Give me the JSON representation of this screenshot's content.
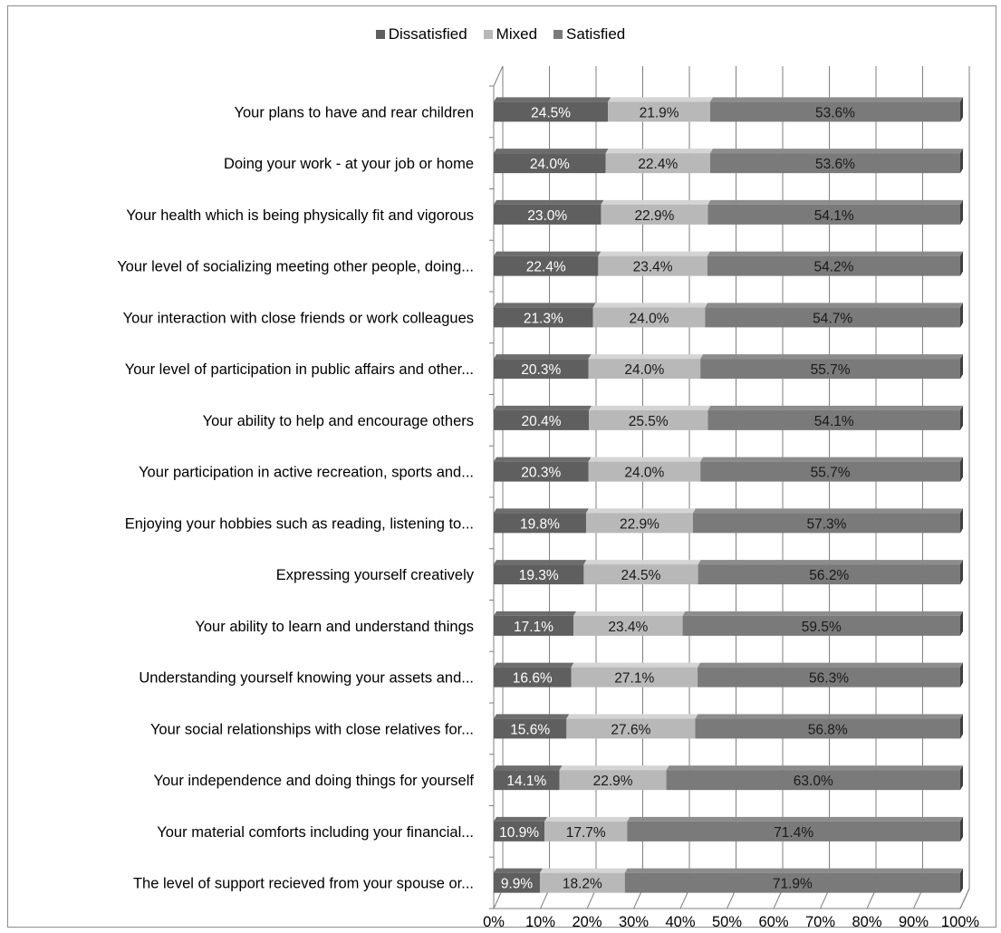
{
  "chart_data": {
    "type": "bar",
    "orientation": "horizontal",
    "stacked": "percent",
    "style": "3d",
    "legend_position": "top",
    "grid": true,
    "xlim": [
      0,
      100
    ],
    "x_ticks": [
      "0%",
      "10%",
      "20%",
      "30%",
      "40%",
      "50%",
      "60%",
      "70%",
      "80%",
      "90%",
      "100%"
    ],
    "categories": [
      "Your plans to have and rear children",
      "Doing your work - at your job or home",
      "Your health which is being physically fit and vigorous",
      "Your level of socializing meeting other people, doing...",
      "Your interaction with close friends or work colleagues",
      "Your level of participation in public affairs and other...",
      "Your ability to help and encourage others",
      "Your participation in active recreation, sports and...",
      "Enjoying your hobbies such as reading, listening to...",
      "Expressing yourself creatively",
      "Your ability to learn  and understand things",
      "Understanding yourself knowing your assets and...",
      "Your social relationships with close relatives for...",
      "Your independence and doing things for yourself",
      "Your material comforts including your financial...",
      "The level of support recieved from your spouse or..."
    ],
    "series": [
      {
        "name": "Dissatisfied",
        "color": "#5f5f5f",
        "values": [
          24.5,
          24.0,
          23.0,
          22.4,
          21.3,
          20.3,
          20.4,
          20.3,
          19.8,
          19.3,
          17.1,
          16.6,
          15.6,
          14.1,
          10.9,
          9.9
        ],
        "labels": [
          "24.5%",
          "24.0%",
          "23.0%",
          "22.4%",
          "21.3%",
          "20.3%",
          "20.4%",
          "20.3%",
          "19.8%",
          "19.3%",
          "17.1%",
          "16.6%",
          "15.6%",
          "14.1%",
          "10.9%",
          "9.9%"
        ]
      },
      {
        "name": "Mixed",
        "color": "#b8b8b8",
        "values": [
          21.9,
          22.4,
          22.9,
          23.4,
          24.0,
          24.0,
          25.5,
          24.0,
          22.9,
          24.5,
          23.4,
          27.1,
          27.6,
          22.9,
          17.7,
          18.2
        ],
        "labels": [
          "21.9%",
          "22.4%",
          "22.9%",
          "23.4%",
          "24.0%",
          "24.0%",
          "25.5%",
          "24.0%",
          "22.9%",
          "24.5%",
          "23.4%",
          "27.1%",
          "27.6%",
          "22.9%",
          "17.7%",
          "18.2%"
        ]
      },
      {
        "name": "Satisfied",
        "color": "#7a7a7a",
        "values": [
          53.6,
          53.6,
          54.1,
          54.2,
          54.7,
          55.7,
          54.1,
          55.7,
          57.3,
          56.2,
          59.5,
          56.3,
          56.8,
          63.0,
          71.4,
          71.9
        ],
        "labels": [
          "53.6%",
          "53.6%",
          "54.1%",
          "54.2%",
          "54.7%",
          "55.7%",
          "54.1%",
          "55.7%",
          "57.3%",
          "56.2%",
          "59.5%",
          "56.3%",
          "56.8%",
          "63.0%",
          "71.4%",
          "71.9%"
        ]
      }
    ]
  }
}
